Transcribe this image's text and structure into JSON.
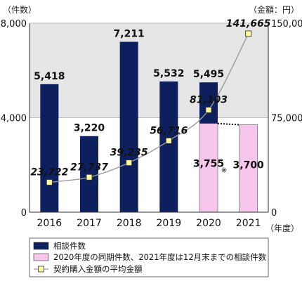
{
  "chart_data": {
    "type": "bar",
    "categories": [
      "2016",
      "2017",
      "2018",
      "2019",
      "2020",
      "2021"
    ],
    "left_axis_unit": "（件数）",
    "right_axis_unit": "（金額：円）",
    "x_axis_unit": "（年度）",
    "left_axis": {
      "ylim": [
        0,
        8000
      ],
      "ticks": [
        "8,000",
        "4,000",
        "0"
      ]
    },
    "right_axis": {
      "ylim": [
        0,
        150000
      ],
      "ticks": [
        "150,000",
        "75,000",
        "0"
      ]
    },
    "series": [
      {
        "name": "相談件数",
        "type": "bar",
        "axis": "left",
        "color": "#0d1f5c",
        "values": [
          5418,
          3220,
          7211,
          5532,
          5495,
          null
        ],
        "labels": [
          "5,418",
          "3,220",
          "7,211",
          "5,532",
          "5,495",
          ""
        ]
      },
      {
        "name": "2020年度の同期件数、2021年度は12月末までの相談件数",
        "type": "bar",
        "axis": "left",
        "color": "#f7c6ec",
        "values": [
          null,
          null,
          null,
          null,
          3755,
          3700
        ],
        "labels": [
          "",
          "",
          "",
          "",
          "3,755",
          "3,700"
        ],
        "note": "※"
      },
      {
        "name": "契約購入金額の平均金額",
        "type": "line",
        "axis": "right",
        "color": "#999999",
        "marker_color": "#ffffa0",
        "values": [
          23722,
          27737,
          39235,
          56716,
          81103,
          141665
        ],
        "labels": [
          "23,722",
          "27,737",
          "39,235",
          "56,716",
          "81,103",
          "141,665"
        ]
      }
    ],
    "shaded_region": {
      "axis": "left",
      "from": 4000,
      "to": 8000,
      "color": "#e6e6e6"
    }
  }
}
